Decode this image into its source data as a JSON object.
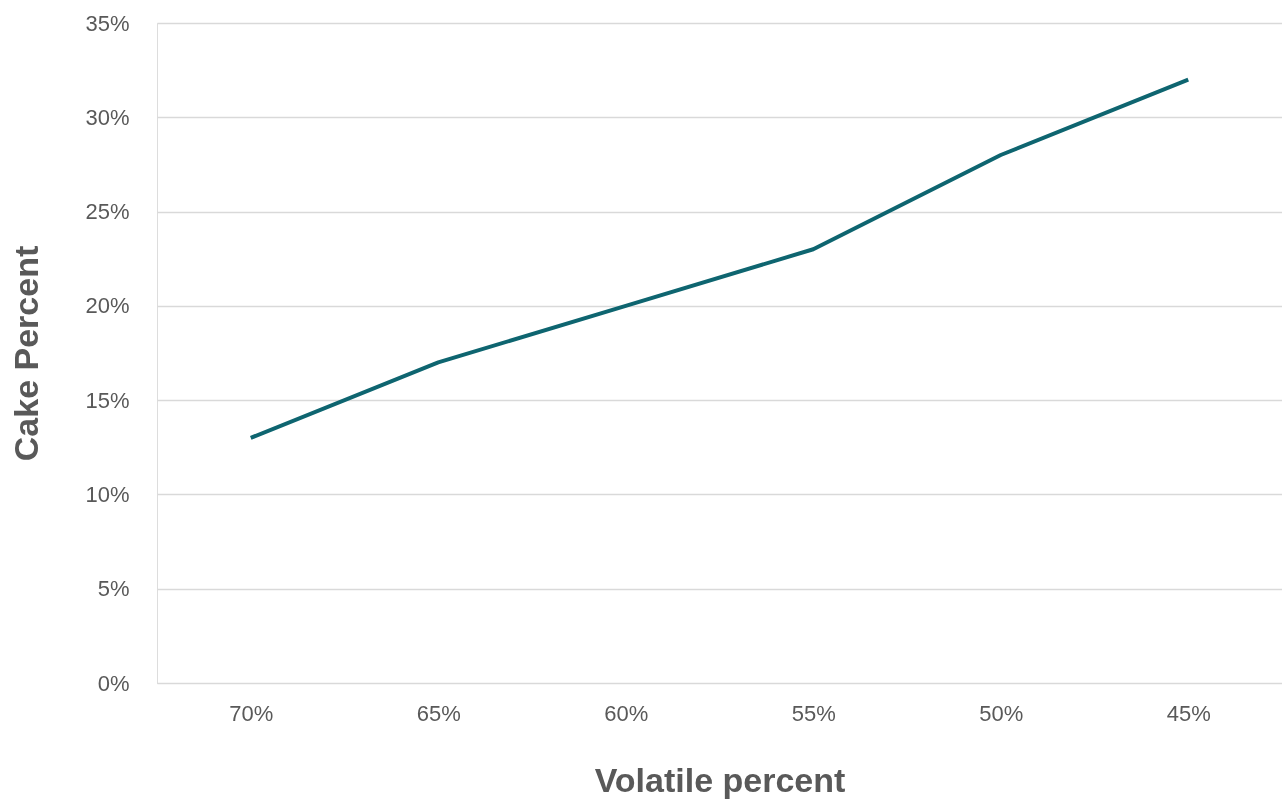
{
  "chart_data": {
    "type": "line",
    "xlabel": "Volatile percent",
    "ylabel": "Cake Percent",
    "categories": [
      "70%",
      "65%",
      "60%",
      "55%",
      "50%",
      "45%"
    ],
    "series": [
      {
        "color": "#0e6570",
        "values": [
          13,
          17,
          20,
          23,
          28,
          32
        ]
      }
    ],
    "ylim": [
      0,
      35
    ],
    "yticks": [
      {
        "value": 0,
        "label": "0%"
      },
      {
        "value": 5,
        "label": "5%"
      },
      {
        "value": 10,
        "label": "10%"
      },
      {
        "value": 15,
        "label": "15%"
      },
      {
        "value": 20,
        "label": "20%"
      },
      {
        "value": 25,
        "label": "25%"
      },
      {
        "value": 30,
        "label": "30%"
      },
      {
        "value": 35,
        "label": "35%"
      }
    ],
    "grid": "y"
  }
}
